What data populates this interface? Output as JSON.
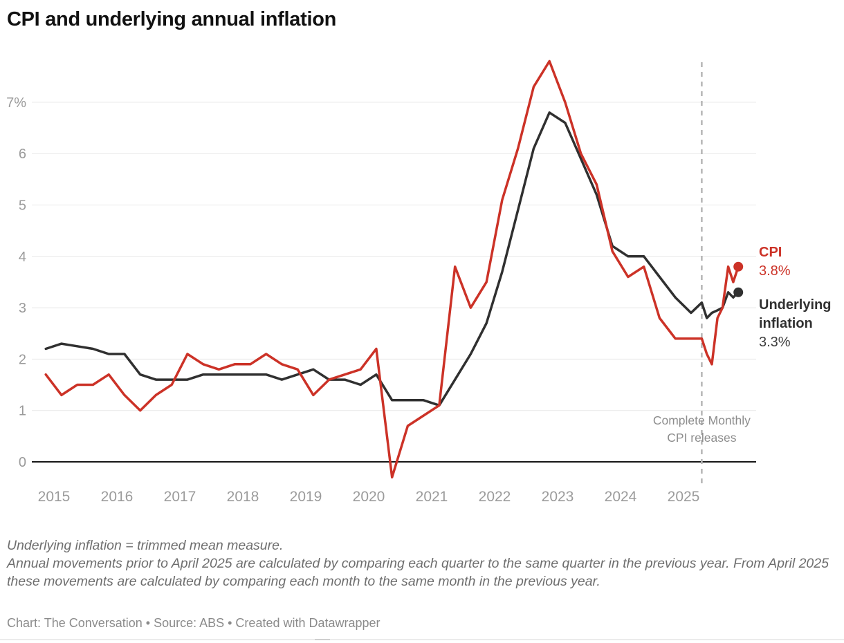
{
  "header": {
    "title": "CPI and underlying annual inflation"
  },
  "chart_data": {
    "type": "line",
    "title": "CPI and underlying annual inflation",
    "x_axis": {
      "ticks": [
        2015,
        2016,
        2017,
        2018,
        2019,
        2020,
        2021,
        2022,
        2023,
        2024,
        2025
      ],
      "range": [
        2014.6,
        2026.3
      ],
      "grid": false
    },
    "y_axis": {
      "ticks": [
        0,
        1,
        2,
        3,
        4,
        5,
        6,
        7
      ],
      "tick_labels": [
        "0",
        "1",
        "2",
        "3",
        "4",
        "5",
        "6",
        "7%"
      ],
      "range": [
        -0.6,
        8.0
      ],
      "unit": "%",
      "grid": true
    },
    "legend_position": "right-end-labels",
    "series": [
      {
        "id": "underlying",
        "name": "Underlying inflation",
        "color": "#303030",
        "end_label": "Underlying inflation",
        "end_value_label": "3.3%",
        "points": [
          [
            2014.87,
            2.2
          ],
          [
            2015.12,
            2.3
          ],
          [
            2015.37,
            2.25
          ],
          [
            2015.62,
            2.2
          ],
          [
            2015.87,
            2.1
          ],
          [
            2016.12,
            2.1
          ],
          [
            2016.37,
            1.7
          ],
          [
            2016.62,
            1.6
          ],
          [
            2016.87,
            1.6
          ],
          [
            2017.12,
            1.6
          ],
          [
            2017.37,
            1.7
          ],
          [
            2017.62,
            1.7
          ],
          [
            2017.87,
            1.7
          ],
          [
            2018.12,
            1.7
          ],
          [
            2018.37,
            1.7
          ],
          [
            2018.62,
            1.6
          ],
          [
            2018.87,
            1.7
          ],
          [
            2019.12,
            1.8
          ],
          [
            2019.37,
            1.6
          ],
          [
            2019.62,
            1.6
          ],
          [
            2019.87,
            1.5
          ],
          [
            2020.12,
            1.7
          ],
          [
            2020.37,
            1.2
          ],
          [
            2020.62,
            1.2
          ],
          [
            2020.87,
            1.2
          ],
          [
            2021.12,
            1.1
          ],
          [
            2021.37,
            1.6
          ],
          [
            2021.62,
            2.1
          ],
          [
            2021.87,
            2.7
          ],
          [
            2022.12,
            3.7
          ],
          [
            2022.37,
            4.9
          ],
          [
            2022.62,
            6.1
          ],
          [
            2022.87,
            6.8
          ],
          [
            2023.12,
            6.6
          ],
          [
            2023.37,
            5.9
          ],
          [
            2023.62,
            5.2
          ],
          [
            2023.87,
            4.2
          ],
          [
            2024.12,
            4.0
          ],
          [
            2024.37,
            4.0
          ],
          [
            2024.62,
            3.6
          ],
          [
            2024.87,
            3.2
          ],
          [
            2025.12,
            2.9
          ],
          [
            2025.29,
            3.1
          ],
          [
            2025.37,
            2.8
          ],
          [
            2025.45,
            2.9
          ],
          [
            2025.54,
            2.95
          ],
          [
            2025.62,
            3.0
          ],
          [
            2025.71,
            3.3
          ],
          [
            2025.79,
            3.2
          ],
          [
            2025.87,
            3.3
          ]
        ]
      },
      {
        "id": "cpi",
        "name": "CPI",
        "color": "#cc3227",
        "end_label": "CPI",
        "end_value_label": "3.8%",
        "points": [
          [
            2014.87,
            1.7
          ],
          [
            2015.12,
            1.3
          ],
          [
            2015.37,
            1.5
          ],
          [
            2015.62,
            1.5
          ],
          [
            2015.87,
            1.7
          ],
          [
            2016.12,
            1.3
          ],
          [
            2016.37,
            1.0
          ],
          [
            2016.62,
            1.3
          ],
          [
            2016.87,
            1.5
          ],
          [
            2017.12,
            2.1
          ],
          [
            2017.37,
            1.9
          ],
          [
            2017.62,
            1.8
          ],
          [
            2017.87,
            1.9
          ],
          [
            2018.12,
            1.9
          ],
          [
            2018.37,
            2.1
          ],
          [
            2018.62,
            1.9
          ],
          [
            2018.87,
            1.8
          ],
          [
            2019.12,
            1.3
          ],
          [
            2019.37,
            1.6
          ],
          [
            2019.62,
            1.7
          ],
          [
            2019.87,
            1.8
          ],
          [
            2020.12,
            2.2
          ],
          [
            2020.37,
            -0.3
          ],
          [
            2020.62,
            0.7
          ],
          [
            2020.87,
            0.9
          ],
          [
            2021.12,
            1.1
          ],
          [
            2021.37,
            3.8
          ],
          [
            2021.62,
            3.0
          ],
          [
            2021.87,
            3.5
          ],
          [
            2022.12,
            5.1
          ],
          [
            2022.37,
            6.1
          ],
          [
            2022.62,
            7.3
          ],
          [
            2022.87,
            7.8
          ],
          [
            2023.12,
            7.0
          ],
          [
            2023.37,
            6.0
          ],
          [
            2023.62,
            5.4
          ],
          [
            2023.87,
            4.1
          ],
          [
            2024.12,
            3.6
          ],
          [
            2024.37,
            3.8
          ],
          [
            2024.62,
            2.8
          ],
          [
            2024.87,
            2.4
          ],
          [
            2025.12,
            2.4
          ],
          [
            2025.29,
            2.4
          ],
          [
            2025.37,
            2.1
          ],
          [
            2025.45,
            1.9
          ],
          [
            2025.54,
            2.8
          ],
          [
            2025.62,
            3.0
          ],
          [
            2025.71,
            3.8
          ],
          [
            2025.79,
            3.5
          ],
          [
            2025.87,
            3.8
          ]
        ]
      }
    ],
    "annotations": {
      "vline_x": 2025.29,
      "vline_label_line1": "Complete Monthly",
      "vline_label_line2": "CPI releases"
    }
  },
  "notes": {
    "line1": "Underlying inflation = trimmed mean measure.",
    "line2": "Annual movements prior to April 2025 are calculated by comparing each quarter to the same quarter in the previous year. From April 2025 these movements are calculated by comparing each month to the same month in the previous year."
  },
  "credits": {
    "text": "Chart: The Conversation • Source: ABS • Created with Datawrapper"
  }
}
